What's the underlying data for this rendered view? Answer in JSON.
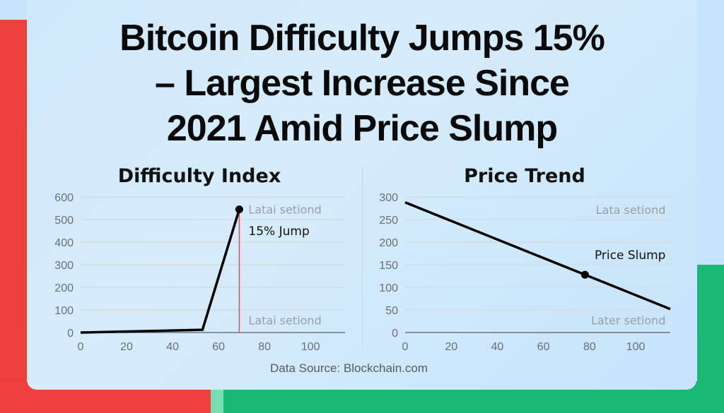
{
  "headline": {
    "lines": [
      "Bitcoin Difficulty Jumps 15%",
      "– Largest Increase Since",
      "2021 Amid Price Slump"
    ]
  },
  "source": "Data Source: Blockchain.com",
  "colors": {
    "line": "#000000",
    "marker_line": "#e05555",
    "grid": "#d9d4cf",
    "tick_text": "#6b6f75",
    "faint_text": "#9a9ea3",
    "accent_red": "#ee3f3f",
    "accent_green": "#19b874"
  },
  "chart_data": [
    {
      "type": "line",
      "title": "Difficulty Index",
      "xlabel": "",
      "ylabel": "",
      "xlim": [
        0,
        115
      ],
      "ylim": [
        0,
        600
      ],
      "xticks": [
        0,
        20,
        40,
        60,
        80,
        100
      ],
      "yticks": [
        0,
        100,
        200,
        300,
        400,
        500,
        600
      ],
      "grid": true,
      "series": [
        {
          "name": "Difficulty",
          "x": [
            0,
            53,
            69
          ],
          "y": [
            0,
            12,
            545
          ]
        }
      ],
      "highlight_point": {
        "x": 69,
        "y": 545
      },
      "vertical_marker_x": 69,
      "annotations": [
        {
          "text": "15% Jump",
          "x": 73,
          "y": 450,
          "style": "dark"
        },
        {
          "text": "Latai setiond",
          "x": 73,
          "y": 545,
          "style": "faint"
        },
        {
          "text": "Latai setiond",
          "x": 73,
          "y": 55,
          "style": "faint"
        }
      ]
    },
    {
      "type": "line",
      "title": "Price Trend",
      "xlabel": "",
      "ylabel": "",
      "xlim": [
        0,
        115
      ],
      "ylim": [
        0,
        300
      ],
      "xticks": [
        0,
        20,
        40,
        60,
        80,
        100
      ],
      "yticks": [
        0,
        50,
        100,
        150,
        200,
        250,
        300
      ],
      "grid": true,
      "series": [
        {
          "name": "Price",
          "x": [
            0,
            115
          ],
          "y": [
            288,
            52
          ]
        }
      ],
      "highlight_point": {
        "x": 78,
        "y": 128
      },
      "annotations": [
        {
          "text": "Lata setiond",
          "x": 113,
          "y": 272,
          "style": "faint",
          "anchor": "end"
        },
        {
          "text": "Price Slump",
          "x": 113,
          "y": 172,
          "style": "dark",
          "anchor": "end"
        },
        {
          "text": "Later setiond",
          "x": 113,
          "y": 27,
          "style": "faint",
          "anchor": "end"
        }
      ]
    }
  ]
}
